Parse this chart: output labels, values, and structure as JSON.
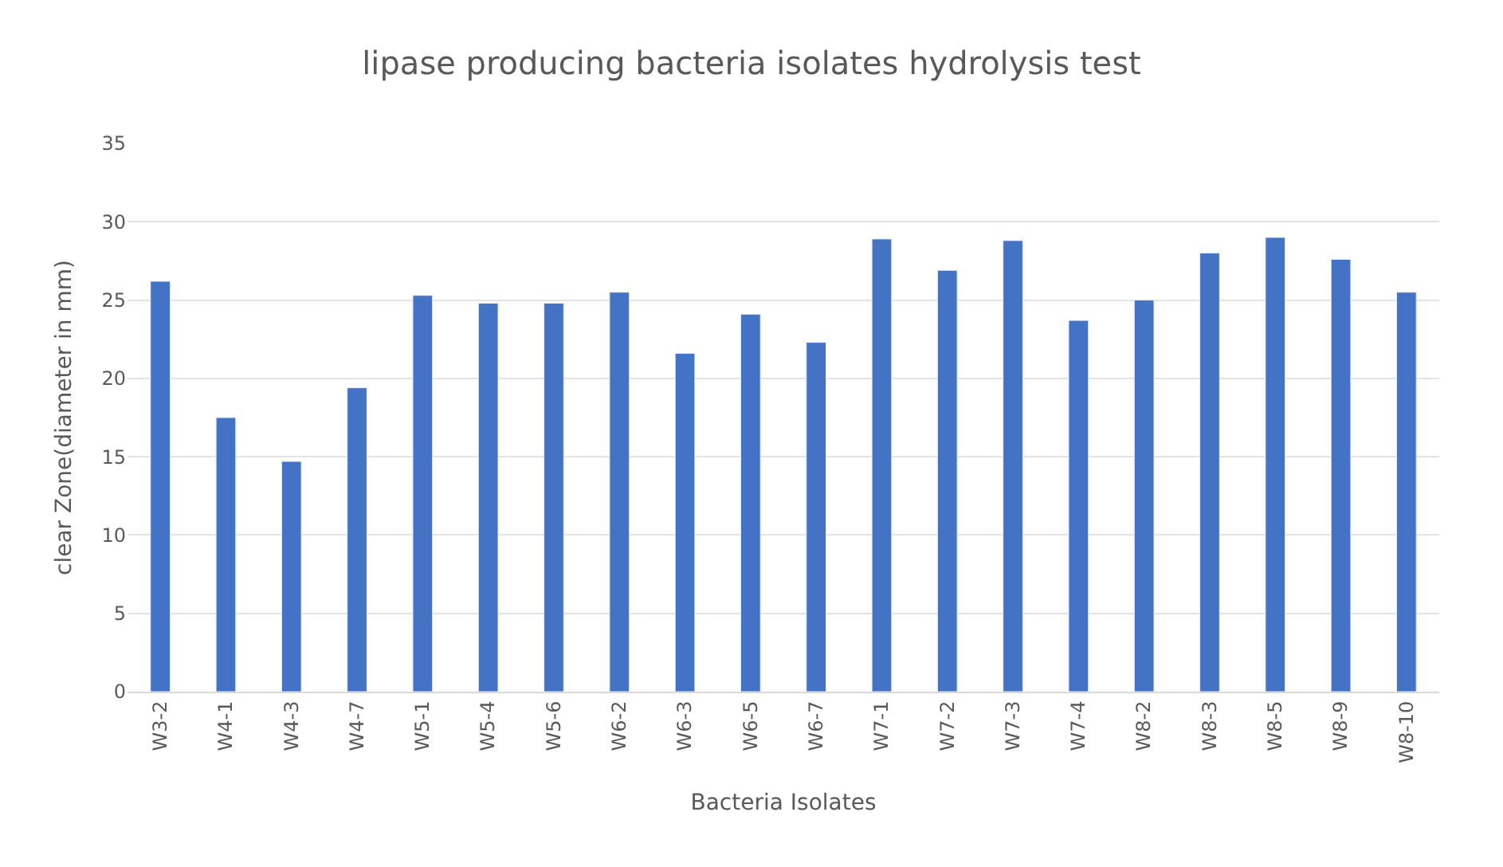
{
  "chart_data": {
    "type": "bar",
    "title": "lipase producing bacteria isolates hydrolysis test",
    "xlabel": "Bacteria Isolates",
    "ylabel": "clear Zone(diameter in mm)",
    "categories": [
      "W3-2",
      "W4-1",
      "W4-3",
      "W4-7",
      "W5-1",
      "W5-4",
      "W5-6",
      "W6-2",
      "W6-3",
      "W6-5",
      "W6-7",
      "W7-1",
      "W7-2",
      "W7-3",
      "W7-4",
      "W8-2",
      "W8-3",
      "W8-5",
      "W8-9",
      "W8-10"
    ],
    "values": [
      26.2,
      17.5,
      14.7,
      19.4,
      25.3,
      24.8,
      24.8,
      25.5,
      21.6,
      24.1,
      22.3,
      28.9,
      26.9,
      28.8,
      23.7,
      25.0,
      28.0,
      29.0,
      27.6,
      25.5
    ],
    "color": "#4472c4",
    "ylim": [
      0,
      35
    ],
    "yticks": [
      0,
      5,
      10,
      15,
      20,
      25,
      30,
      35
    ],
    "grid": "y"
  }
}
